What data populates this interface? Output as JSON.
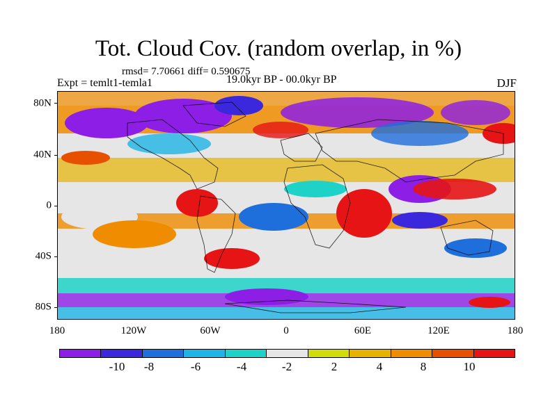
{
  "title": "Tot. Cloud Cov. (random overlap, in %)",
  "rmsd_line": "rmsd= 7.70661 diff= 0.590675",
  "expt_line": "Expt = temlt1-temla1",
  "period": "19.0kyr BP - 00.0kyr BP",
  "season": "DJF",
  "y_axis_labels": [
    "80N",
    "40N",
    "0",
    "40S",
    "80S"
  ],
  "x_axis_labels": [
    "180",
    "120W",
    "60W",
    "0",
    "60E",
    "120E",
    "180"
  ],
  "colorbar": {
    "colors": [
      "#8c1ee6",
      "#3c28dc",
      "#1e6edc",
      "#1eb4e6",
      "#1ed2c8",
      "#e6e6e6",
      "#d2dc0a",
      "#e6b400",
      "#f08c00",
      "#e65000",
      "#e61414"
    ],
    "labels": [
      "-10",
      "-8",
      "-6",
      "-4",
      "-2",
      "2",
      "4",
      "8",
      "10"
    ]
  }
}
